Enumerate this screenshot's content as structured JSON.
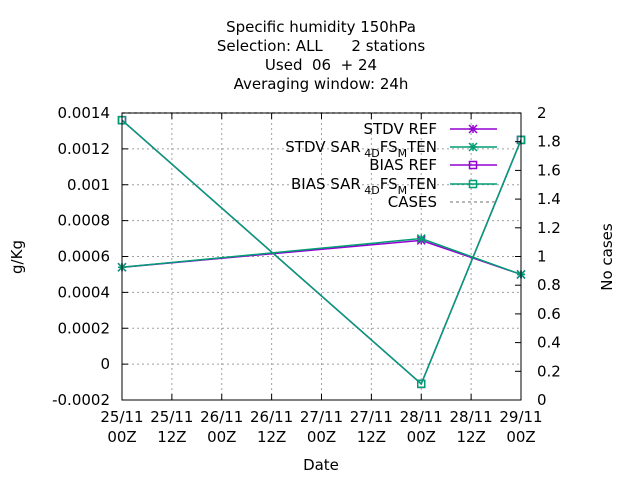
{
  "chart_data": {
    "type": "line",
    "title_lines": [
      "Specific humidity 150hPa",
      "Selection: ALL      2 stations",
      "Used  06  + 24",
      "Averaging window: 24h"
    ],
    "xlabel": "Date",
    "ylabel": "g/Kg",
    "y2label": "No cases",
    "x_ticks": [
      {
        "l1": "25/11",
        "l2": "00Z"
      },
      {
        "l1": "25/11",
        "l2": "12Z"
      },
      {
        "l1": "26/11",
        "l2": "00Z"
      },
      {
        "l1": "26/11",
        "l2": "12Z"
      },
      {
        "l1": "27/11",
        "l2": "00Z"
      },
      {
        "l1": "27/11",
        "l2": "12Z"
      },
      {
        "l1": "28/11",
        "l2": "00Z"
      },
      {
        "l1": "28/11",
        "l2": "12Z"
      },
      {
        "l1": "29/11",
        "l2": "00Z"
      }
    ],
    "ylim": [
      -0.0002,
      0.0014
    ],
    "y_ticks": [
      "-0.0002",
      "0",
      "0.0002",
      "0.0004",
      "0.0006",
      "0.0008",
      "0.001",
      "0.0012",
      "0.0014"
    ],
    "y2lim": [
      0,
      2
    ],
    "y2_ticks": [
      "0",
      "0.2",
      "0.4",
      "0.6",
      "0.8",
      "1",
      "1.2",
      "1.4",
      "1.6",
      "1.8",
      "2"
    ],
    "legend_position": "top-right",
    "series": [
      {
        "name": "STDV REF",
        "color": "#9400d3",
        "marker": "star",
        "axis": "y",
        "x": [
          0,
          6,
          8
        ],
        "values": [
          0.00054,
          0.00069,
          0.0005
        ]
      },
      {
        "name": "STDV SAR",
        "sub1": "4D",
        "mid": "FS",
        "sub2": "M",
        "tail": "TEN",
        "color": "#009e73",
        "marker": "star",
        "axis": "y",
        "x": [
          0,
          6,
          8
        ],
        "values": [
          0.00054,
          0.0007,
          0.0005
        ]
      },
      {
        "name": "BIAS REF",
        "color": "#9400d3",
        "marker": "square",
        "axis": "y",
        "x": [
          0,
          6,
          8
        ],
        "values": [
          0.00136,
          -0.00011,
          0.00125
        ]
      },
      {
        "name": "BIAS SAR",
        "sub1": "4D",
        "mid": "FS",
        "sub2": "M",
        "tail": "TEN",
        "color": "#009e73",
        "marker": "square",
        "axis": "y",
        "x": [
          0,
          6,
          8
        ],
        "values": [
          0.00136,
          -0.00011,
          0.00125
        ]
      },
      {
        "name": "CASES",
        "color": "#a0a0a0",
        "marker": "none",
        "dashed": true,
        "axis": "y2",
        "x": [
          0,
          6,
          8
        ],
        "values": [
          2,
          2,
          2
        ]
      }
    ]
  }
}
